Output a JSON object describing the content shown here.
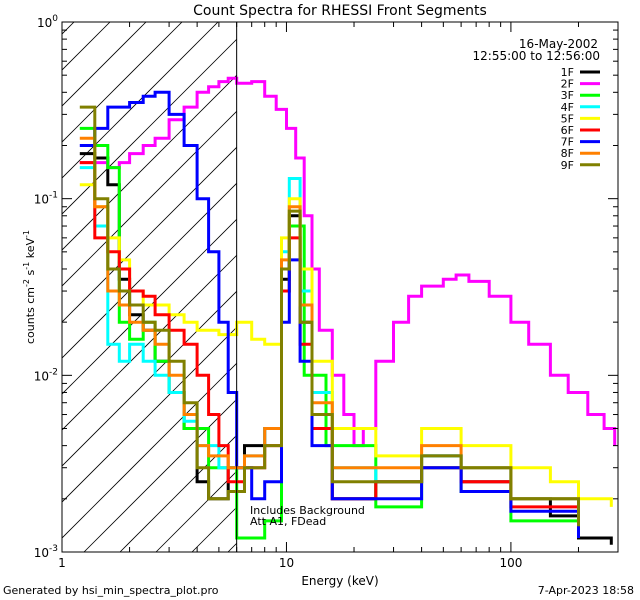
{
  "chart_data": {
    "type": "line",
    "title": "Count Spectra for RHESSI Front Segments",
    "xlabel": "Energy (keV)",
    "ylabel": "counts cm-2 s-1 keV-1",
    "ylabel_parts": {
      "base": "counts cm",
      "exp1": "-2",
      "mid1": " s",
      "exp2": "-1",
      "mid2": " keV",
      "exp3": "-1"
    },
    "xscale": "log",
    "yscale": "log",
    "xlim": [
      1,
      300
    ],
    "ylim": [
      0.001,
      1
    ],
    "x_ticks": [
      1,
      10,
      100
    ],
    "x_tick_labels": [
      "1",
      "10",
      "100"
    ],
    "y_ticks": [
      0.001,
      0.01,
      0.1,
      1
    ],
    "y_tick_labels": [
      {
        "base": "10",
        "exp": "-3"
      },
      {
        "base": "10",
        "exp": "-2"
      },
      {
        "base": "10",
        "exp": "-1"
      },
      {
        "base": "10",
        "exp": "0"
      }
    ],
    "date": "16-May-2002",
    "time_range": "12:55:00 to 12:56:00",
    "attenuator_boundary_keV": 6,
    "annotation_lines": [
      "Includes Background",
      "Att A1, FDead"
    ],
    "legend_position": "top-right",
    "series": [
      {
        "name": "1F",
        "color": "#000000",
        "points": [
          [
            1.2,
            0.18
          ],
          [
            1.4,
            0.17
          ],
          [
            1.6,
            0.12
          ],
          [
            1.8,
            0.035
          ],
          [
            2.0,
            0.022
          ],
          [
            2.3,
            0.018
          ],
          [
            2.6,
            0.012
          ],
          [
            3.0,
            0.008
          ],
          [
            3.5,
            0.005
          ],
          [
            4.0,
            0.0025
          ],
          [
            4.5,
            0.002
          ],
          [
            5.5,
            0.003
          ],
          [
            6.5,
            0.004
          ],
          [
            8.0,
            0.005
          ],
          [
            9.5,
            0.035
          ],
          [
            10.3,
            0.08
          ],
          [
            11.5,
            0.02
          ],
          [
            13,
            0.005
          ],
          [
            16,
            0.002
          ],
          [
            25,
            0.0025
          ],
          [
            40,
            0.0035
          ],
          [
            60,
            0.0025
          ],
          [
            100,
            0.002
          ],
          [
            150,
            0.0016
          ],
          [
            200,
            0.0012
          ],
          [
            280,
            0.0011
          ]
        ]
      },
      {
        "name": "2F",
        "color": "#ff00ff",
        "points": [
          [
            1.2,
            0.16
          ],
          [
            1.4,
            0.16
          ],
          [
            1.6,
            0.15
          ],
          [
            1.8,
            0.16
          ],
          [
            2.0,
            0.18
          ],
          [
            2.3,
            0.2
          ],
          [
            2.6,
            0.22
          ],
          [
            3.0,
            0.28
          ],
          [
            3.5,
            0.33
          ],
          [
            4.0,
            0.4
          ],
          [
            4.5,
            0.43
          ],
          [
            5.0,
            0.46
          ],
          [
            5.5,
            0.48
          ],
          [
            6.0,
            0.45
          ],
          [
            7.0,
            0.46
          ],
          [
            8.0,
            0.38
          ],
          [
            9.0,
            0.32
          ],
          [
            10,
            0.25
          ],
          [
            11,
            0.17
          ],
          [
            12,
            0.08
          ],
          [
            13,
            0.04
          ],
          [
            14,
            0.018
          ],
          [
            16,
            0.01
          ],
          [
            18,
            0.006
          ],
          [
            20,
            0.004
          ],
          [
            22,
            0.005
          ],
          [
            25,
            0.012
          ],
          [
            30,
            0.02
          ],
          [
            35,
            0.028
          ],
          [
            40,
            0.032
          ],
          [
            50,
            0.035
          ],
          [
            57,
            0.037
          ],
          [
            65,
            0.034
          ],
          [
            80,
            0.028
          ],
          [
            100,
            0.02
          ],
          [
            120,
            0.015
          ],
          [
            150,
            0.01
          ],
          [
            180,
            0.008
          ],
          [
            220,
            0.006
          ],
          [
            260,
            0.005
          ],
          [
            290,
            0.004
          ]
        ]
      },
      {
        "name": "3F",
        "color": "#00ff00",
        "points": [
          [
            1.2,
            0.25
          ],
          [
            1.4,
            0.2
          ],
          [
            1.6,
            0.15
          ],
          [
            1.8,
            0.02
          ],
          [
            2.0,
            0.016
          ],
          [
            2.3,
            0.02
          ],
          [
            2.6,
            0.012
          ],
          [
            3.0,
            0.008
          ],
          [
            3.5,
            0.005
          ],
          [
            4.5,
            0.003
          ],
          [
            6.0,
            0.0012
          ],
          [
            8.0,
            0.0015
          ],
          [
            9.5,
            0.03
          ],
          [
            10.3,
            0.07
          ],
          [
            12,
            0.01
          ],
          [
            15,
            0.004
          ],
          [
            25,
            0.0018
          ],
          [
            40,
            0.003
          ],
          [
            60,
            0.0022
          ],
          [
            100,
            0.0015
          ],
          [
            200,
            0.0012
          ]
        ]
      },
      {
        "name": "4F",
        "color": "#00ffff",
        "points": [
          [
            1.2,
            0.15
          ],
          [
            1.4,
            0.07
          ],
          [
            1.6,
            0.015
          ],
          [
            1.8,
            0.012
          ],
          [
            2.0,
            0.015
          ],
          [
            2.3,
            0.012
          ],
          [
            2.6,
            0.01
          ],
          [
            3.0,
            0.008
          ],
          [
            3.5,
            0.0055
          ],
          [
            4.0,
            0.004
          ],
          [
            5.0,
            0.003
          ],
          [
            6.5,
            0.0035
          ],
          [
            8.0,
            0.005
          ],
          [
            9.5,
            0.05
          ],
          [
            10.3,
            0.13
          ],
          [
            11.5,
            0.03
          ],
          [
            13,
            0.008
          ],
          [
            16,
            0.003
          ],
          [
            25,
            0.0025
          ],
          [
            40,
            0.0035
          ],
          [
            60,
            0.003
          ],
          [
            100,
            0.002
          ],
          [
            200,
            0.0014
          ]
        ]
      },
      {
        "name": "5F",
        "color": "#ffff00",
        "points": [
          [
            1.2,
            0.12
          ],
          [
            1.4,
            0.09
          ],
          [
            1.6,
            0.06
          ],
          [
            1.8,
            0.045
          ],
          [
            2.0,
            0.03
          ],
          [
            2.3,
            0.025
          ],
          [
            2.6,
            0.025
          ],
          [
            3.0,
            0.022
          ],
          [
            3.5,
            0.02
          ],
          [
            4.0,
            0.018
          ],
          [
            5.0,
            0.017
          ],
          [
            6.0,
            0.02
          ],
          [
            7.0,
            0.016
          ],
          [
            8.0,
            0.015
          ],
          [
            9.5,
            0.06
          ],
          [
            10.3,
            0.1
          ],
          [
            11.5,
            0.04
          ],
          [
            13,
            0.012
          ],
          [
            16,
            0.005
          ],
          [
            25,
            0.0035
          ],
          [
            40,
            0.005
          ],
          [
            60,
            0.004
          ],
          [
            100,
            0.003
          ],
          [
            150,
            0.0025
          ],
          [
            200,
            0.002
          ],
          [
            280,
            0.0018
          ]
        ]
      },
      {
        "name": "6F",
        "color": "#ff0000",
        "points": [
          [
            1.2,
            0.16
          ],
          [
            1.4,
            0.06
          ],
          [
            1.6,
            0.05
          ],
          [
            1.8,
            0.04
          ],
          [
            2.0,
            0.03
          ],
          [
            2.3,
            0.028
          ],
          [
            2.6,
            0.022
          ],
          [
            3.0,
            0.018
          ],
          [
            3.5,
            0.015
          ],
          [
            4.0,
            0.01
          ],
          [
            4.5,
            0.006
          ],
          [
            5.0,
            0.004
          ],
          [
            5.5,
            0.0025
          ],
          [
            6.5,
            0.003
          ],
          [
            8.0,
            0.004
          ],
          [
            9.5,
            0.03
          ],
          [
            10.3,
            0.06
          ],
          [
            11.5,
            0.015
          ],
          [
            13,
            0.005
          ],
          [
            16,
            0.002
          ],
          [
            25,
            0.0025
          ],
          [
            40,
            0.003
          ],
          [
            60,
            0.0025
          ],
          [
            100,
            0.0018
          ],
          [
            200,
            0.0013
          ]
        ]
      },
      {
        "name": "7F",
        "color": "#0000ff",
        "points": [
          [
            1.2,
            0.2
          ],
          [
            1.4,
            0.25
          ],
          [
            1.6,
            0.33
          ],
          [
            1.8,
            0.33
          ],
          [
            2.0,
            0.35
          ],
          [
            2.3,
            0.38
          ],
          [
            2.6,
            0.4
          ],
          [
            3.0,
            0.3
          ],
          [
            3.5,
            0.2
          ],
          [
            4.0,
            0.1
          ],
          [
            4.5,
            0.05
          ],
          [
            5.0,
            0.02
          ],
          [
            5.5,
            0.008
          ],
          [
            6.0,
            0.003
          ],
          [
            7.0,
            0.002
          ],
          [
            8.0,
            0.0025
          ],
          [
            9.5,
            0.02
          ],
          [
            10.3,
            0.045
          ],
          [
            11.5,
            0.012
          ],
          [
            13,
            0.004
          ],
          [
            16,
            0.002
          ],
          [
            25,
            0.002
          ],
          [
            40,
            0.003
          ],
          [
            60,
            0.0022
          ],
          [
            100,
            0.0017
          ],
          [
            200,
            0.0012
          ]
        ]
      },
      {
        "name": "8F",
        "color": "#ff8000",
        "points": [
          [
            1.2,
            0.22
          ],
          [
            1.4,
            0.09
          ],
          [
            1.6,
            0.03
          ],
          [
            1.8,
            0.025
          ],
          [
            2.0,
            0.02
          ],
          [
            2.3,
            0.018
          ],
          [
            2.6,
            0.015
          ],
          [
            3.0,
            0.01
          ],
          [
            3.5,
            0.006
          ],
          [
            4.0,
            0.004
          ],
          [
            4.5,
            0.0035
          ],
          [
            5.5,
            0.003
          ],
          [
            6.5,
            0.0035
          ],
          [
            8.0,
            0.005
          ],
          [
            9.5,
            0.045
          ],
          [
            10.3,
            0.09
          ],
          [
            11.5,
            0.025
          ],
          [
            13,
            0.007
          ],
          [
            16,
            0.003
          ],
          [
            25,
            0.003
          ],
          [
            40,
            0.004
          ],
          [
            60,
            0.003
          ],
          [
            100,
            0.002
          ],
          [
            200,
            0.0015
          ]
        ]
      },
      {
        "name": "9F",
        "color": "#808000",
        "points": [
          [
            1.2,
            0.33
          ],
          [
            1.4,
            0.1
          ],
          [
            1.6,
            0.04
          ],
          [
            1.8,
            0.03
          ],
          [
            2.0,
            0.025
          ],
          [
            2.3,
            0.02
          ],
          [
            2.6,
            0.018
          ],
          [
            3.0,
            0.012
          ],
          [
            3.5,
            0.007
          ],
          [
            4.0,
            0.003
          ],
          [
            4.5,
            0.002
          ],
          [
            5.5,
            0.0022
          ],
          [
            6.5,
            0.003
          ],
          [
            8.0,
            0.004
          ],
          [
            9.5,
            0.04
          ],
          [
            10.3,
            0.085
          ],
          [
            11.5,
            0.02
          ],
          [
            13,
            0.006
          ],
          [
            16,
            0.0025
          ],
          [
            25,
            0.0025
          ],
          [
            40,
            0.0035
          ],
          [
            60,
            0.003
          ],
          [
            100,
            0.002
          ],
          [
            200,
            0.0014
          ]
        ]
      }
    ]
  },
  "footer": {
    "left": "Generated by hsi_min_spectra_plot.pro",
    "right": "7-Apr-2023 18:58"
  }
}
